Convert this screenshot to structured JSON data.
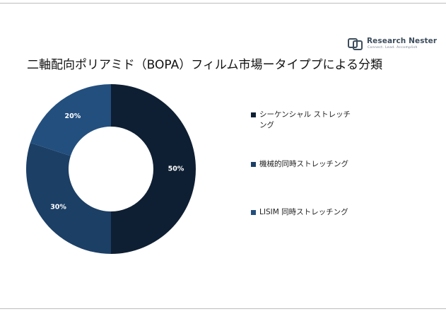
{
  "brand": {
    "name": "Research Nester",
    "tagline": "Connect. Lead. Accomplish"
  },
  "colors": {
    "rule": "#bdbdbd",
    "logo": "#3d4d5c"
  },
  "chart_data": {
    "type": "pie",
    "variant": "donut",
    "title": "二軸配向ポリアミド（BOPA）フィルム市場ータイププによる分類",
    "categories": [
      "シーケンシャル ストレッチング",
      "機械的同時ストレッチング",
      "LISIM 同時ストレッチング"
    ],
    "values": [
      50,
      30,
      20
    ],
    "value_labels": [
      "50%",
      "30%",
      "20%"
    ],
    "colors": [
      "#0f1f33",
      "#1c3f66",
      "#234f7e"
    ],
    "legend_position": "right"
  }
}
